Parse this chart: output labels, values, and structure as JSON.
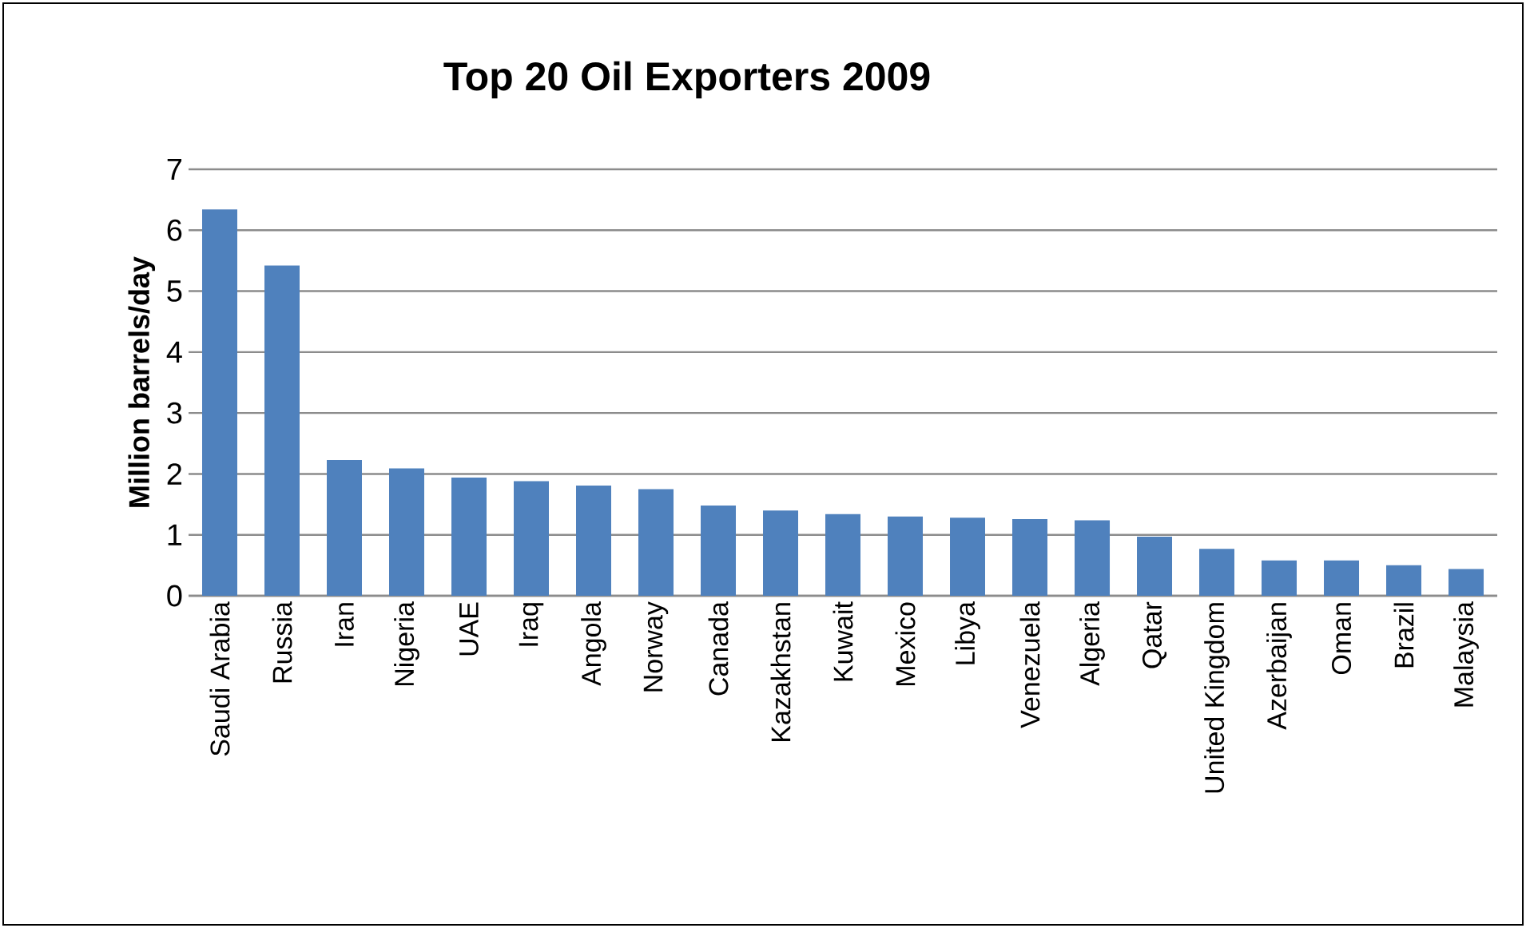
{
  "chart_data": {
    "type": "bar",
    "title": "Top 20 Oil Exporters 2009",
    "ylabel": "Million barrels/day",
    "categories": [
      "Saudi Arabia",
      "Russia",
      "Iran",
      "Nigeria",
      "UAE",
      "Iraq",
      "Angola",
      "Norway",
      "Canada",
      "Kazakhstan",
      "Kuwait",
      "Mexico",
      "Libya",
      "Venezuela",
      "Algeria",
      "Qatar",
      "United Kingdom",
      "Azerbaijan",
      "Oman",
      "Brazil",
      "Malaysia"
    ],
    "values": [
      6.34,
      5.42,
      2.23,
      2.09,
      1.94,
      1.88,
      1.81,
      1.75,
      1.48,
      1.4,
      1.34,
      1.3,
      1.28,
      1.26,
      1.24,
      0.97,
      0.77,
      0.58,
      0.58,
      0.5,
      0.44
    ],
    "color": "#4f81bd",
    "ylim": [
      0,
      7
    ],
    "yticks": [
      0,
      1,
      2,
      3,
      4,
      5,
      6,
      7
    ],
    "grid": "y"
  }
}
